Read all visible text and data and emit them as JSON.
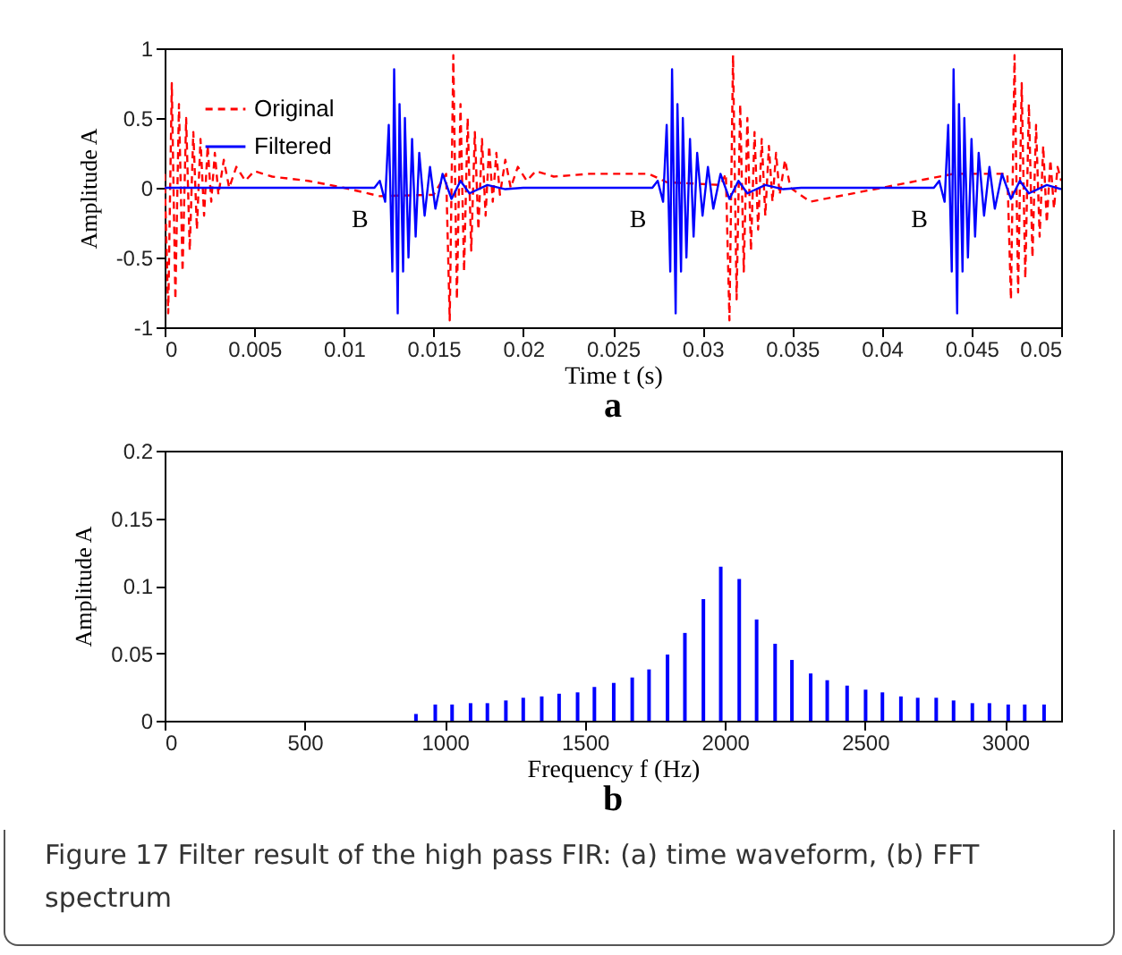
{
  "chart_data": [
    {
      "type": "line",
      "title": "a",
      "xlabel": "Time t (s)",
      "ylabel": "Amplitude A",
      "xlim": [
        0,
        0.05
      ],
      "xticks": [
        0,
        0.005,
        0.01,
        0.015,
        0.02,
        0.025,
        0.03,
        0.035,
        0.04,
        0.045,
        0.05
      ],
      "ylim": [
        -1,
        1
      ],
      "yticks": [
        -1,
        -0.5,
        0,
        0.5,
        1
      ],
      "legend": "top left",
      "annotations": [
        {
          "text": "B",
          "x": 0.0117,
          "y": 0
        },
        {
          "text": "B",
          "x": 0.0272,
          "y": 0
        },
        {
          "text": "B",
          "x": 0.0429,
          "y": 0
        }
      ],
      "series": [
        {
          "name": "Original",
          "color": "#ff0000",
          "line_style": "dashed",
          "x": [
            0,
            0.0002,
            0.0004,
            0.0006,
            0.0008,
            0.001,
            0.0012,
            0.0014,
            0.0016,
            0.0018,
            0.002,
            0.0022,
            0.0024,
            0.0026,
            0.0028,
            0.003,
            0.0033,
            0.0036,
            0.004,
            0.0045,
            0.005,
            0.006,
            0.008,
            0.01,
            0.012,
            0.015,
            0.0157,
            0.0159,
            0.0161,
            0.0163,
            0.0165,
            0.0167,
            0.0169,
            0.0171,
            0.0173,
            0.0175,
            0.0177,
            0.0179,
            0.0181,
            0.0183,
            0.0185,
            0.0187,
            0.019,
            0.0193,
            0.0197,
            0.0202,
            0.0207,
            0.0217,
            0.0237,
            0.027,
            0.028,
            0.031,
            0.0313,
            0.0315,
            0.0317,
            0.0319,
            0.0321,
            0.0323,
            0.0325,
            0.0327,
            0.0329,
            0.0331,
            0.0333,
            0.0335,
            0.0337,
            0.0339,
            0.0341,
            0.0343,
            0.0346,
            0.0349,
            0.036,
            0.038,
            0.04,
            0.042,
            0.044,
            0.046,
            0.047,
            0.0472,
            0.0474,
            0.0476,
            0.0478,
            0.048,
            0.0482,
            0.0484,
            0.0486,
            0.0488,
            0.049,
            0.0492,
            0.0494,
            0.0496,
            0.0498,
            0.05
          ],
          "values": [
            0.1,
            -0.9,
            0.75,
            -0.8,
            0.6,
            -0.6,
            0.5,
            -0.45,
            0.4,
            -0.3,
            0.35,
            -0.2,
            0.3,
            -0.1,
            0.25,
            -0.05,
            0.2,
            0,
            0.15,
            0.05,
            0.12,
            0.08,
            0.05,
            0,
            -0.06,
            -0.05,
            0.1,
            -0.95,
            0.95,
            -0.8,
            0.6,
            -0.6,
            0.5,
            -0.45,
            0.4,
            -0.3,
            0.35,
            -0.2,
            0.3,
            -0.1,
            0.25,
            -0.05,
            0.2,
            0,
            0.15,
            0.05,
            0.12,
            0.08,
            0.1,
            0.1,
            0.04,
            0.02,
            0.1,
            -0.95,
            0.95,
            -0.8,
            0.6,
            -0.6,
            0.5,
            -0.45,
            0.4,
            -0.3,
            0.35,
            -0.2,
            0.3,
            -0.1,
            0.25,
            -0.05,
            0.2,
            0,
            -0.1,
            -0.05,
            0,
            0.05,
            0.1,
            0.1,
            0.1,
            -0.8,
            0.95,
            -0.75,
            0.75,
            -0.65,
            0.6,
            -0.5,
            0.45,
            -0.35,
            0.3,
            -0.25,
            0.2,
            -0.15,
            0.15,
            0.05
          ]
        },
        {
          "name": "Filtered",
          "color": "#0000ff",
          "line_style": "solid",
          "x": [
            0,
            0.005,
            0.0117,
            0.012,
            0.0123,
            0.0125,
            0.0127,
            0.0128,
            0.013,
            0.0131,
            0.0133,
            0.0134,
            0.0136,
            0.0138,
            0.014,
            0.0142,
            0.0145,
            0.0148,
            0.0151,
            0.0155,
            0.016,
            0.0165,
            0.017,
            0.018,
            0.019,
            0.02,
            0.0272,
            0.0275,
            0.0278,
            0.028,
            0.0282,
            0.0283,
            0.0285,
            0.0286,
            0.0288,
            0.0289,
            0.0291,
            0.0293,
            0.0295,
            0.0297,
            0.03,
            0.0303,
            0.0306,
            0.031,
            0.0315,
            0.032,
            0.0325,
            0.0335,
            0.0345,
            0.0355,
            0.0429,
            0.0432,
            0.0435,
            0.0437,
            0.0439,
            0.044,
            0.0442,
            0.0443,
            0.0445,
            0.0446,
            0.0448,
            0.045,
            0.0452,
            0.0454,
            0.0457,
            0.046,
            0.0463,
            0.0467,
            0.0472,
            0.0477,
            0.0482,
            0.0492,
            0.05
          ],
          "values": [
            0,
            0,
            0,
            0.05,
            -0.1,
            0.45,
            -0.6,
            0.85,
            -0.9,
            0.6,
            -0.6,
            0.5,
            -0.5,
            0.35,
            -0.35,
            0.25,
            -0.2,
            0.15,
            -0.15,
            0.1,
            -0.08,
            0.05,
            -0.04,
            0.02,
            -0.01,
            0,
            0,
            0.05,
            -0.1,
            0.45,
            -0.6,
            0.85,
            -0.9,
            0.6,
            -0.6,
            0.5,
            -0.5,
            0.35,
            -0.35,
            0.25,
            -0.2,
            0.15,
            -0.15,
            0.1,
            -0.08,
            0.05,
            -0.04,
            0.02,
            -0.01,
            0,
            0,
            0.05,
            -0.1,
            0.45,
            -0.6,
            0.85,
            -0.9,
            0.6,
            -0.6,
            0.5,
            -0.5,
            0.35,
            -0.35,
            0.25,
            -0.2,
            0.15,
            -0.15,
            0.1,
            -0.08,
            0.05,
            -0.04,
            0.02,
            -0.01
          ]
        }
      ]
    },
    {
      "type": "bar",
      "title": "b",
      "xlabel": "Frequency f (Hz)",
      "ylabel": "Amplitude A",
      "xlim": [
        0,
        3200
      ],
      "xticks": [
        0,
        500,
        1000,
        1500,
        2000,
        2500,
        3000
      ],
      "ylim": [
        0,
        0.2
      ],
      "yticks": [
        0,
        0.05,
        0.1,
        0.15,
        0.2
      ],
      "color": "#0000ff",
      "x": [
        897,
        966,
        1026,
        1092,
        1152,
        1218,
        1280,
        1346,
        1408,
        1474,
        1534,
        1603,
        1669,
        1729,
        1795,
        1857,
        1923,
        1985,
        2051,
        2113,
        2179,
        2239,
        2306,
        2365,
        2436,
        2502,
        2562,
        2628,
        2688,
        2754,
        2816,
        2883,
        2944,
        3011,
        3070,
        3139
      ],
      "values": [
        0.005,
        0.012,
        0.012,
        0.013,
        0.013,
        0.015,
        0.017,
        0.018,
        0.02,
        0.021,
        0.025,
        0.028,
        0.032,
        0.038,
        0.049,
        0.065,
        0.09,
        0.114,
        0.105,
        0.075,
        0.057,
        0.045,
        0.035,
        0.03,
        0.026,
        0.023,
        0.021,
        0.018,
        0.017,
        0.017,
        0.015,
        0.013,
        0.013,
        0.012,
        0.012,
        0.012
      ],
      "annotations": [
        "Figure 17  Filter result of the high pass FIR: (a) time waveform, (b) FFT spectrum"
      ]
    }
  ]
}
